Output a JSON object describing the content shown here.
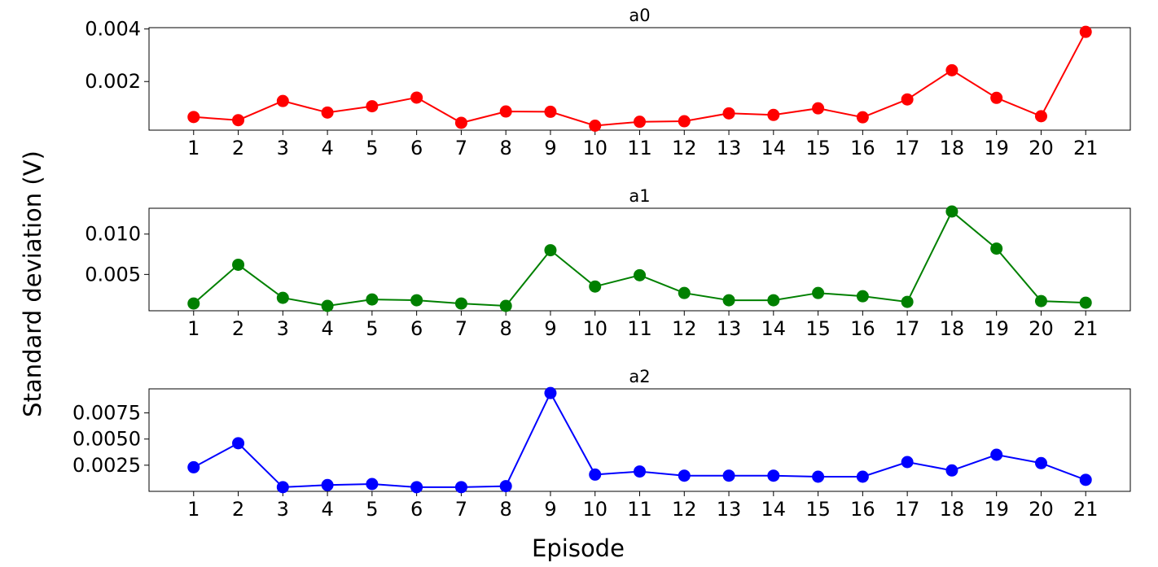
{
  "figure": {
    "ylabel": "Standard deviation (V)",
    "xlabel": "Episode"
  },
  "chart_data": [
    {
      "type": "line",
      "title": "a0",
      "color": "#ff0000",
      "x": [
        1,
        2,
        3,
        4,
        5,
        6,
        7,
        8,
        9,
        10,
        11,
        12,
        13,
        14,
        15,
        16,
        17,
        18,
        19,
        20,
        21
      ],
      "x_ticks": [
        "1",
        "2",
        "3",
        "4",
        "5",
        "6",
        "7",
        "8",
        "9",
        "10",
        "11",
        "12",
        "13",
        "14",
        "15",
        "16",
        "17",
        "18",
        "19",
        "20",
        "21"
      ],
      "values": [
        0.00065,
        0.00053,
        0.00126,
        0.00082,
        0.00106,
        0.00139,
        0.00043,
        0.00086,
        0.00085,
        0.00032,
        0.00047,
        0.00049,
        0.00079,
        0.00073,
        0.00098,
        0.00064,
        0.00132,
        0.00243,
        0.00138,
        0.00068,
        0.00389
      ],
      "ylim": [
        0.00015,
        0.00405
      ],
      "y_ticks": [
        0.002,
        0.004
      ],
      "y_tick_labels": [
        "0.002",
        "0.004"
      ],
      "xlim": [
        0,
        22
      ],
      "grid": false,
      "markers": true
    },
    {
      "type": "line",
      "title": "a1",
      "color": "#008000",
      "x": [
        1,
        2,
        3,
        4,
        5,
        6,
        7,
        8,
        9,
        10,
        11,
        12,
        13,
        14,
        15,
        16,
        17,
        18,
        19,
        20,
        21
      ],
      "x_ticks": [
        "1",
        "2",
        "3",
        "4",
        "5",
        "6",
        "7",
        "8",
        "9",
        "10",
        "11",
        "12",
        "13",
        "14",
        "15",
        "16",
        "17",
        "18",
        "19",
        "20",
        "21"
      ],
      "values": [
        0.0014,
        0.0062,
        0.0021,
        0.0011,
        0.0019,
        0.0018,
        0.0014,
        0.0011,
        0.008,
        0.0035,
        0.0049,
        0.0027,
        0.0018,
        0.0018,
        0.0027,
        0.0023,
        0.0016,
        0.0128,
        0.0082,
        0.0017,
        0.0015
      ],
      "ylim": [
        0.0005,
        0.0132
      ],
      "y_ticks": [
        0.005,
        0.01
      ],
      "y_tick_labels": [
        "0.005",
        "0.010"
      ],
      "xlim": [
        0,
        22
      ],
      "grid": false,
      "markers": true
    },
    {
      "type": "line",
      "title": "a2",
      "color": "#0000ff",
      "x": [
        1,
        2,
        3,
        4,
        5,
        6,
        7,
        8,
        9,
        10,
        11,
        12,
        13,
        14,
        15,
        16,
        17,
        18,
        19,
        20,
        21
      ],
      "x_ticks": [
        "1",
        "2",
        "3",
        "4",
        "5",
        "6",
        "7",
        "8",
        "9",
        "10",
        "11",
        "12",
        "13",
        "14",
        "15",
        "16",
        "17",
        "18",
        "19",
        "20",
        "21"
      ],
      "values": [
        0.0023,
        0.0046,
        0.0004,
        0.0006,
        0.0007,
        0.0004,
        0.0004,
        0.0005,
        0.0094,
        0.0016,
        0.0019,
        0.0015,
        0.0015,
        0.0015,
        0.0014,
        0.0014,
        0.0028,
        0.002,
        0.0035,
        0.0027,
        0.0011
      ],
      "ylim": [
        0.0,
        0.0098
      ],
      "y_ticks": [
        0.0025,
        0.005,
        0.0075
      ],
      "y_tick_labels": [
        "0.0025",
        "0.0050",
        "0.0075"
      ],
      "xlim": [
        0,
        22
      ],
      "grid": false,
      "markers": true
    }
  ]
}
